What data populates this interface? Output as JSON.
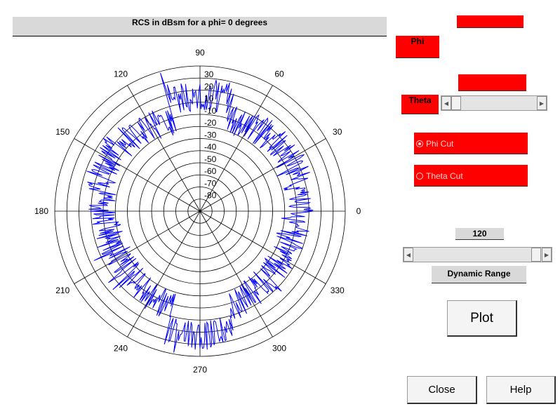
{
  "plot": {
    "title": "RCS in dBsm for a phi= 0 degrees",
    "radial_labels": [
      "30",
      "20",
      "10",
      "-10",
      "-20",
      "-30",
      "-40",
      "-50",
      "-60",
      "-70",
      "-80"
    ],
    "angle_labels": [
      "0",
      "30",
      "60",
      "90",
      "120",
      "150",
      "180",
      "210",
      "240",
      "270",
      "300",
      "330"
    ],
    "colors": {
      "trace": "#0000ff",
      "grid": "#000000"
    }
  },
  "controls": {
    "phi_label": "Phi",
    "theta_label": "Theta",
    "phi_cut_label": "Phi Cut",
    "theta_cut_label": "Theta Cut",
    "phi_cut_selected": true,
    "dynamic_range_value": "120",
    "dynamic_range_label": "Dynamic Range",
    "plot_button": "Plot",
    "close_button": "Close",
    "help_button": "Help",
    "accent_color": "#ff0000"
  }
}
